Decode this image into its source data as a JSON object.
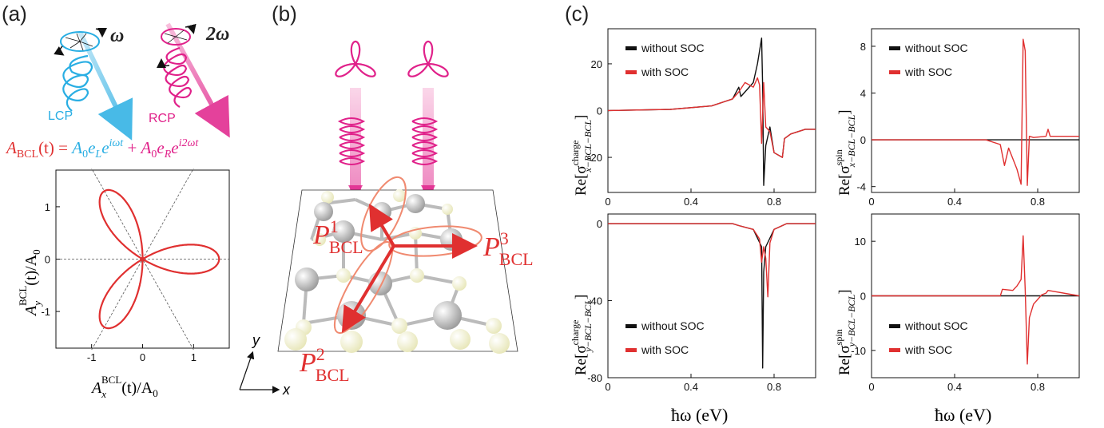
{
  "panels": {
    "a": "(a)",
    "b": "(b)",
    "c": "(c)"
  },
  "panel_a": {
    "omega_label": "ω",
    "two_omega_label": "2ω",
    "lcp_label": "LCP",
    "rcp_label": "RCP",
    "formula": {
      "lhs_A": "A",
      "lhs_sub": "BCL",
      "lhs_rest": "(t) = ",
      "t1_A": "A",
      "t1_0": "0",
      "t1_e": "e",
      "t1_L": "L",
      "t1_e2": "e",
      "t1_exp": "iωt",
      "plus": " + ",
      "t2_A": "A",
      "t2_0": "0",
      "t2_e": "e",
      "t2_R": "R",
      "t2_e2": "e",
      "t2_exp": "i2ωt"
    },
    "xlabel": {
      "main": "A",
      "sub": "x",
      "sup": "BCL",
      "rest": "(t)/A",
      "sub0": "0"
    },
    "ylabel": {
      "main": "A",
      "sub": "y",
      "sup": "BCL",
      "rest": "(t)/A",
      "sub0": "0"
    },
    "colors": {
      "lcp": "#29aee3",
      "rcp": "#e0218a",
      "curve": "#e03030"
    }
  },
  "panel_b": {
    "P1": {
      "main": "P",
      "sup": "1",
      "sub": "BCL"
    },
    "P2": {
      "main": "P",
      "sup": "2",
      "sub": "BCL"
    },
    "P3": {
      "main": "P",
      "sup": "3",
      "sub": "BCL"
    },
    "axis_x": "x",
    "axis_y": "y"
  },
  "panel_c": {
    "legend_without": "without SOC",
    "legend_with": "with SOC",
    "xlabel": "ħω (eV)",
    "ylabel_prefix": "Re[σ",
    "ylabel_suffix": "]",
    "ylabels": [
      {
        "sup": "charge",
        "sub": "x−BCL−BCL"
      },
      {
        "sup": "spin",
        "sub": "x−BCL−BCL"
      },
      {
        "sup": "charge",
        "sub": "y−BCL−BCL"
      },
      {
        "sup": "spin",
        "sub": "y−BCL−BCL"
      }
    ],
    "colors": {
      "without": "#111111",
      "with": "#e03030"
    }
  },
  "chart_data": [
    {
      "type": "line",
      "panel": "a",
      "xlabel": "A_x^BCL(t)/A_0",
      "ylabel": "A_y^BCL(t)/A_0",
      "xlim": [
        -1.7,
        1.7
      ],
      "ylim": [
        -1.7,
        1.7
      ],
      "xticks": [
        -1,
        0,
        1
      ],
      "yticks": [
        -1,
        0,
        1
      ],
      "series": [
        {
          "values": "trefoil r(θ)=1.45·|cos(3θ/2)| shape, petals at 0°, 120°, 240°"
        }
      ]
    },
    {
      "type": "line",
      "panel": "c-top-left",
      "xlim": [
        0,
        1.0
      ],
      "ylim": [
        -35,
        35
      ],
      "xticks": [
        0,
        0.4,
        0.8
      ],
      "yticks": [
        -20,
        0,
        20
      ],
      "series": [
        {
          "name": "without SOC",
          "x": [
            0,
            0.3,
            0.5,
            0.6,
            0.63,
            0.64,
            0.66,
            0.7,
            0.72,
            0.74,
            0.745,
            0.75,
            0.76,
            0.78,
            0.8,
            0.84,
            0.85,
            0.88,
            0.95,
            1.0
          ],
          "y": [
            0,
            0.5,
            2,
            5,
            10,
            6,
            8,
            12,
            20,
            31,
            10,
            -32,
            -15,
            -7,
            -18,
            -20,
            -12,
            -10,
            -8,
            -8
          ]
        },
        {
          "name": "with SOC",
          "x": [
            0,
            0.3,
            0.5,
            0.6,
            0.63,
            0.66,
            0.7,
            0.72,
            0.73,
            0.74,
            0.75,
            0.76,
            0.78,
            0.8,
            0.84,
            0.85,
            0.88,
            0.95,
            1.0
          ],
          "y": [
            0,
            0.5,
            2,
            5,
            8,
            12,
            10,
            14,
            11,
            -14,
            12,
            -7,
            -9,
            -18,
            -20,
            -12,
            -10,
            -8,
            -8
          ]
        }
      ]
    },
    {
      "type": "line",
      "panel": "c-top-right",
      "xlim": [
        0,
        1.0
      ],
      "ylim": [
        -4.5,
        9.5
      ],
      "xticks": [
        0,
        0.4,
        0.8
      ],
      "yticks": [
        -4,
        0,
        4,
        8
      ],
      "series": [
        {
          "name": "without SOC",
          "x": [
            0,
            1.0
          ],
          "y": [
            0,
            0
          ]
        },
        {
          "name": "with SOC",
          "x": [
            0,
            0.55,
            0.62,
            0.64,
            0.66,
            0.7,
            0.72,
            0.73,
            0.74,
            0.75,
            0.76,
            0.78,
            0.84,
            0.85,
            0.86,
            1.0
          ],
          "y": [
            0,
            0,
            -0.4,
            -2.2,
            -0.7,
            -2.5,
            -3.8,
            8.6,
            7.6,
            -3.9,
            0.3,
            0.2,
            0.3,
            0.9,
            0.3,
            0.3
          ]
        }
      ]
    },
    {
      "type": "line",
      "panel": "c-bottom-left",
      "xlim": [
        0,
        1.0
      ],
      "ylim": [
        -80,
        5
      ],
      "xticks": [
        0,
        0.4,
        0.8
      ],
      "yticks": [
        -80,
        -40,
        0
      ],
      "series": [
        {
          "name": "without SOC",
          "x": [
            0,
            0.6,
            0.63,
            0.7,
            0.74,
            0.745,
            0.75,
            0.76,
            0.8,
            0.84,
            0.86,
            1.0
          ],
          "y": [
            0,
            0,
            -1,
            -3,
            -12,
            -75,
            -25,
            -12,
            -3,
            -1,
            0,
            0
          ]
        },
        {
          "name": "with SOC",
          "x": [
            0,
            0.6,
            0.63,
            0.7,
            0.73,
            0.74,
            0.75,
            0.76,
            0.77,
            0.78,
            0.8,
            0.84,
            0.86,
            1.0
          ],
          "y": [
            0,
            0,
            -1,
            -3,
            -8,
            -20,
            -12,
            -18,
            -38,
            -10,
            -3,
            -1,
            0,
            0
          ]
        }
      ]
    },
    {
      "type": "line",
      "panel": "c-bottom-right",
      "xlim": [
        0,
        1.0
      ],
      "ylim": [
        -15,
        15
      ],
      "xticks": [
        0,
        0.4,
        0.8
      ],
      "yticks": [
        -10,
        0,
        10
      ],
      "series": [
        {
          "name": "without SOC",
          "x": [
            0,
            1.0
          ],
          "y": [
            0,
            0
          ]
        },
        {
          "name": "with SOC",
          "x": [
            0,
            0.62,
            0.63,
            0.68,
            0.7,
            0.72,
            0.73,
            0.74,
            0.75,
            0.76,
            0.78,
            0.82,
            0.84,
            0.85,
            1.0
          ],
          "y": [
            0,
            0,
            1.2,
            1.0,
            1.8,
            3.0,
            11,
            1.0,
            -12.5,
            -4,
            -1.5,
            0.2,
            0.5,
            1.0,
            0
          ]
        }
      ]
    }
  ]
}
